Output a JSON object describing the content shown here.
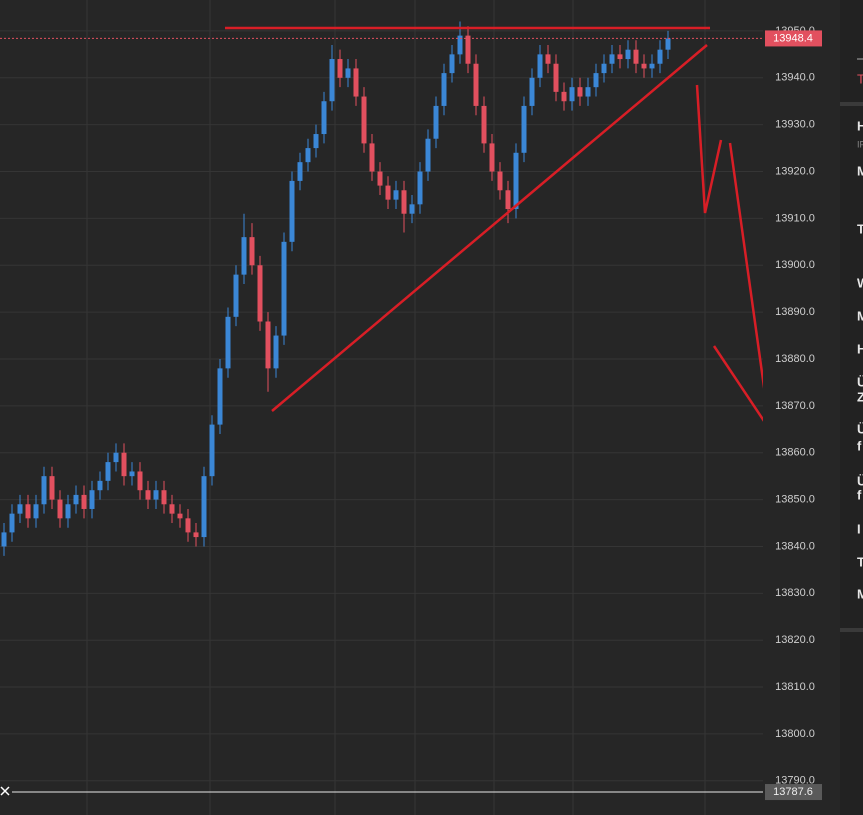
{
  "chart_data": {
    "type": "candlestick",
    "open": [
      13840,
      13843,
      13847,
      13849,
      13846,
      13849,
      13855,
      13850,
      13846,
      13849,
      13851,
      13848,
      13852,
      13854,
      13858,
      13860,
      13855,
      13856,
      13852,
      13850,
      13852,
      13849,
      13847,
      13846,
      13843,
      13842,
      13855,
      13866,
      13878,
      13889,
      13898,
      13906,
      13900,
      13888,
      13878,
      13885,
      13905,
      13918,
      13922,
      13925,
      13928,
      13935,
      13944,
      13940,
      13942,
      13936,
      13926,
      13920,
      13917,
      13914,
      13916,
      13911,
      13913,
      13920,
      13927,
      13934,
      13941,
      13945,
      13949,
      13943,
      13934,
      13926,
      13920,
      13916,
      13912,
      13924,
      13934,
      13940,
      13945,
      13943,
      13937,
      13935,
      13938,
      13936,
      13938,
      13941,
      13943,
      13945,
      13944,
      13946,
      13943,
      13942,
      13943,
      13946
    ],
    "high": [
      13845,
      13849,
      13851,
      13851,
      13851,
      13857,
      13857,
      13852,
      13851,
      13853,
      13853,
      13854,
      13856,
      13860,
      13862,
      13862,
      13858,
      13858,
      13854,
      13854,
      13854,
      13851,
      13849,
      13848,
      13845,
      13857,
      13868,
      13880,
      13891,
      13900,
      13911,
      13909,
      13902,
      13890,
      13887,
      13907,
      13920,
      13924,
      13927,
      13930,
      13937,
      13947,
      13946,
      13944,
      13944,
      13938,
      13928,
      13922,
      13919,
      13918,
      13918,
      13915,
      13922,
      13929,
      13936,
      13943,
      13947,
      13952,
      13951,
      13945,
      13936,
      13928,
      13922,
      13918,
      13926,
      13936,
      13942,
      13947,
      13947,
      13945,
      13939,
      13940,
      13940,
      13940,
      13943,
      13945,
      13947,
      13947,
      13948,
      13948,
      13945,
      13945,
      13948,
      13950
    ],
    "low": [
      13838,
      13841,
      13845,
      13844,
      13844,
      13847,
      13848,
      13844,
      13844,
      13847,
      13846,
      13846,
      13850,
      13852,
      13856,
      13853,
      13853,
      13850,
      13848,
      13848,
      13847,
      13845,
      13844,
      13841,
      13840,
      13840,
      13853,
      13864,
      13876,
      13887,
      13896,
      13898,
      13886,
      13873,
      13876,
      13883,
      13903,
      13916,
      13920,
      13923,
      13926,
      13933,
      13938,
      13938,
      13934,
      13924,
      13918,
      13915,
      13912,
      13912,
      13907,
      13909,
      13911,
      13918,
      13925,
      13932,
      13939,
      13943,
      13941,
      13932,
      13924,
      13918,
      13914,
      13909,
      13910,
      13922,
      13932,
      13938,
      13941,
      13935,
      13933,
      13933,
      13934,
      13934,
      13936,
      13939,
      13941,
      13942,
      13942,
      13941,
      13940,
      13940,
      13941,
      13944
    ],
    "close": [
      13843,
      13847,
      13849,
      13846,
      13849,
      13855,
      13850,
      13846,
      13849,
      13851,
      13848,
      13852,
      13854,
      13858,
      13860,
      13855,
      13856,
      13852,
      13850,
      13852,
      13849,
      13847,
      13846,
      13843,
      13842,
      13855,
      13866,
      13878,
      13889,
      13898,
      13906,
      13900,
      13888,
      13878,
      13885,
      13905,
      13918,
      13922,
      13925,
      13928,
      13935,
      13944,
      13940,
      13942,
      13936,
      13926,
      13920,
      13917,
      13914,
      13916,
      13911,
      13913,
      13920,
      13927,
      13934,
      13941,
      13945,
      13949,
      13943,
      13934,
      13926,
      13920,
      13916,
      13912,
      13924,
      13934,
      13940,
      13945,
      13943,
      13937,
      13935,
      13938,
      13936,
      13938,
      13941,
      13943,
      13945,
      13944,
      13946,
      13943,
      13942,
      13943,
      13946,
      13948.4
    ],
    "up_color": "#3b87d6",
    "down_color": "#e2505f",
    "ylim": [
      13782.7,
      13956.6
    ],
    "yticks": [
      {
        "value": 13790,
        "label": "13790.0"
      },
      {
        "value": 13800,
        "label": "13800.0"
      },
      {
        "value": 13810,
        "label": "13810.0"
      },
      {
        "value": 13820,
        "label": "13820.0"
      },
      {
        "value": 13830,
        "label": "13830.0"
      },
      {
        "value": 13840,
        "label": "13840.0"
      },
      {
        "value": 13850,
        "label": "13850.0"
      },
      {
        "value": 13860,
        "label": "13860.0"
      },
      {
        "value": 13870,
        "label": "13870.0"
      },
      {
        "value": 13880,
        "label": "13880.0"
      },
      {
        "value": 13890,
        "label": "13890.0"
      },
      {
        "value": 13900,
        "label": "13900.0"
      },
      {
        "value": 13910,
        "label": "13910.0"
      },
      {
        "value": 13920,
        "label": "13920.0"
      },
      {
        "value": 13930,
        "label": "13930.0"
      },
      {
        "value": 13940,
        "label": "13940.0"
      },
      {
        "value": 13950,
        "label": "13950.0"
      }
    ],
    "grid": true,
    "last_price": 13948.4,
    "crosshair_price": 13787.6
  },
  "side_panel": {
    "items": [
      "T",
      "H",
      "IF",
      "M",
      "T",
      "W",
      "M",
      "H",
      "Ü",
      "Z",
      "Ü",
      "f",
      "Ü",
      "f",
      "I",
      "T",
      "M"
    ]
  }
}
